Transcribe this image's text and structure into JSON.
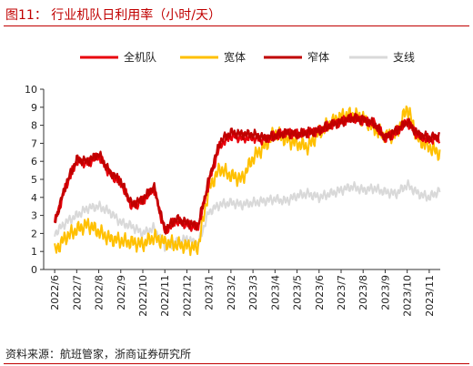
{
  "header": {
    "title": "图11：    行业机队日利用率（小时/天）"
  },
  "footer": {
    "source": "资料来源：航班管家，浙商证券研究所"
  },
  "chart_data": {
    "type": "line",
    "title": "图11：    行业机队日利用率（小时/天）",
    "xlabel": "",
    "ylabel": "",
    "ylim": [
      0,
      10
    ],
    "yticks": [
      "0",
      "1",
      "2",
      "3",
      "4",
      "5",
      "6",
      "7",
      "8",
      "9",
      "10"
    ],
    "xticks": [
      "2022/6",
      "2022/7",
      "2022/8",
      "2022/9",
      "2022/10",
      "2022/11",
      "2022/12",
      "2023/1",
      "2023/2",
      "2023/3",
      "2023/4",
      "2023/5",
      "2023/6",
      "2023/7",
      "2023/8",
      "2023/9",
      "2023/10",
      "2023/11"
    ],
    "grid": false,
    "legend_position": "top",
    "x_month_index": [
      0,
      0.5,
      1,
      1.5,
      2,
      2.5,
      3,
      3.5,
      4,
      4.5,
      5,
      5.5,
      6,
      6.5,
      7,
      7.5,
      8,
      8.5,
      9,
      9.5,
      10,
      10.5,
      11,
      11.5,
      12,
      12.5,
      13,
      13.5,
      14,
      14.5,
      15,
      15.5,
      16,
      16.5,
      17,
      17.5
    ],
    "series": [
      {
        "name": "全机队",
        "color": "#e8000b",
        "width": 2.2,
        "values": [
          2.6,
          4.6,
          6.0,
          5.9,
          6.3,
          5.3,
          4.8,
          3.5,
          3.8,
          4.5,
          2.1,
          2.7,
          2.5,
          2.3,
          4.8,
          6.9,
          7.4,
          7.3,
          7.3,
          7.2,
          7.4,
          7.6,
          7.5,
          7.6,
          7.7,
          8.0,
          8.2,
          8.4,
          8.3,
          8.1,
          7.3,
          7.6,
          8.2,
          7.4,
          7.2,
          7.3
        ]
      },
      {
        "name": "宽体",
        "color": "#ffc000",
        "width": 2.0,
        "values": [
          1.0,
          1.8,
          2.2,
          2.5,
          2.1,
          1.7,
          1.6,
          1.5,
          1.4,
          1.8,
          1.5,
          1.4,
          1.3,
          1.2,
          4.5,
          5.6,
          5.2,
          5.0,
          6.2,
          6.8,
          7.6,
          7.2,
          7.0,
          6.8,
          7.6,
          8.1,
          8.5,
          8.6,
          8.4,
          7.8,
          7.4,
          7.5,
          9.0,
          7.2,
          6.8,
          6.4
        ]
      },
      {
        "name": "窄体",
        "color": "#c00000",
        "width": 2.2,
        "values": [
          2.6,
          4.7,
          6.1,
          6.0,
          6.4,
          5.4,
          4.9,
          3.6,
          3.9,
          4.6,
          2.2,
          2.8,
          2.6,
          2.4,
          5.0,
          7.1,
          7.6,
          7.5,
          7.5,
          7.3,
          7.4,
          7.6,
          7.5,
          7.6,
          7.7,
          8.0,
          8.2,
          8.4,
          8.3,
          8.1,
          7.3,
          7.7,
          8.2,
          7.5,
          7.3,
          7.4
        ]
      },
      {
        "name": "支线",
        "color": "#d9d9d9",
        "width": 2.0,
        "values": [
          2.0,
          2.6,
          3.0,
          3.4,
          3.5,
          3.2,
          2.6,
          2.4,
          2.0,
          2.3,
          1.3,
          1.5,
          1.7,
          1.4,
          3.2,
          3.6,
          3.7,
          3.6,
          3.7,
          3.8,
          3.9,
          3.8,
          4.1,
          4.2,
          4.0,
          4.2,
          4.4,
          4.6,
          4.4,
          4.5,
          4.3,
          4.2,
          4.7,
          4.2,
          4.0,
          4.4
        ]
      }
    ]
  }
}
